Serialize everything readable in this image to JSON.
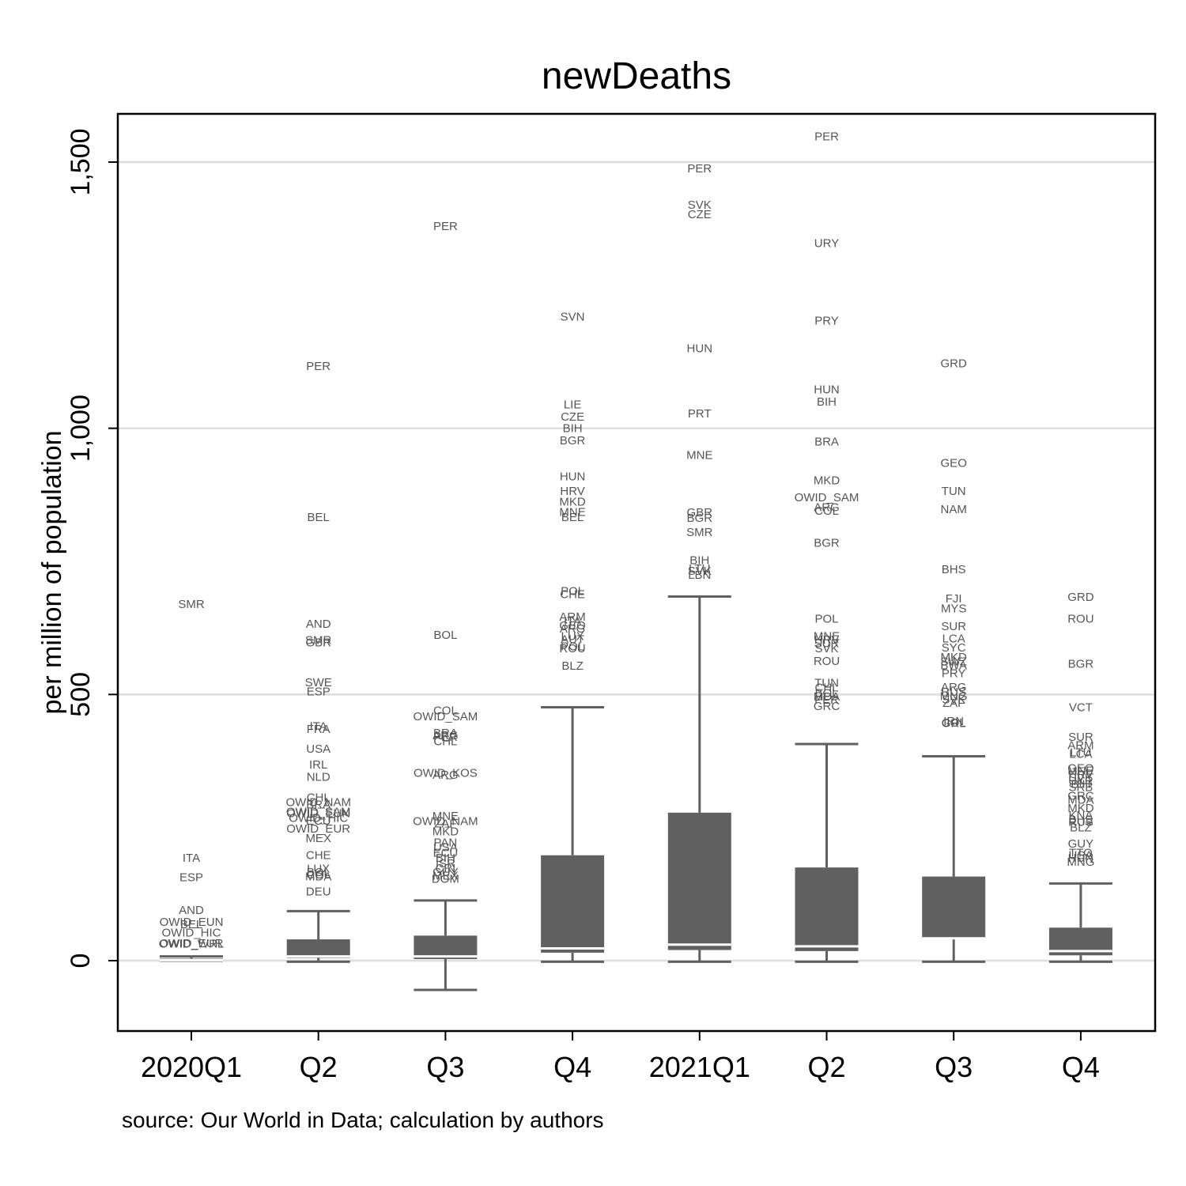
{
  "chart_data": {
    "type": "box",
    "title": "newDeaths",
    "ylabel": "per million of population",
    "source": "source: Our World in Data; calculation by authors",
    "ylim": [
      -135,
      1600
    ],
    "yticks": [
      {
        "value": 0,
        "label": "0"
      },
      {
        "value": 500,
        "label": "500"
      },
      {
        "value": 1000,
        "label": "1,000"
      },
      {
        "value": 1500,
        "label": "1,500"
      }
    ],
    "grid": true,
    "colors": {
      "box": "#606060",
      "median": "#ffffff",
      "grid": "#dddddd",
      "outlier_text": "#555555"
    },
    "categories": [
      "2020Q1",
      "Q2",
      "Q3",
      "Q4",
      "2021Q1",
      "Q2",
      "Q3",
      "Q4"
    ],
    "boxes": [
      {
        "category": "2020Q1",
        "whisker_low": 0,
        "q1": 0,
        "median": 1,
        "q3": 4,
        "whisker_high": 8
      },
      {
        "category": "Q2",
        "whisker_low": -2,
        "q1": 5,
        "median": 8,
        "q3": 40,
        "whisker_high": 93
      },
      {
        "category": "Q3",
        "whisker_low": -55,
        "q1": 3,
        "median": 8,
        "q3": 47,
        "whisker_high": 113
      },
      {
        "category": "Q4",
        "whisker_low": -2,
        "q1": 15,
        "median": 23,
        "q3": 198,
        "whisker_high": 476
      },
      {
        "category": "2021Q1",
        "whisker_low": -2,
        "q1": 20,
        "median": 30,
        "q3": 278,
        "whisker_high": 684
      },
      {
        "category": "Q2",
        "whisker_low": -2,
        "q1": 18,
        "median": 27,
        "q3": 175,
        "whisker_high": 407
      },
      {
        "category": "Q3",
        "whisker_low": -2,
        "q1": 40,
        "median": 42,
        "q3": 158,
        "whisker_high": 384
      },
      {
        "category": "Q4",
        "whisker_low": -2,
        "q1": 10,
        "median": 18,
        "q3": 62,
        "whisker_high": 145
      }
    ],
    "outliers": [
      [
        {
          "label": "SMR",
          "value": 670
        },
        {
          "label": "ITA",
          "value": 193
        },
        {
          "label": "ESP",
          "value": 157
        },
        {
          "label": "AND",
          "value": 95
        },
        {
          "label": "OWID_EUN",
          "value": 73
        },
        {
          "label": "BEL",
          "value": 68
        },
        {
          "label": "OWID_HIC",
          "value": 53
        },
        {
          "label": "OWID_EUR",
          "value": 33
        },
        {
          "label": "OWID_WRL",
          "value": 32
        }
      ],
      [
        {
          "label": "PER",
          "value": 1117
        },
        {
          "label": "BEL",
          "value": 833
        },
        {
          "label": "AND",
          "value": 633
        },
        {
          "label": "SMR",
          "value": 602
        },
        {
          "label": "GBR",
          "value": 598
        },
        {
          "label": "SWE",
          "value": 523
        },
        {
          "label": "ESP",
          "value": 506
        },
        {
          "label": "ITA",
          "value": 440
        },
        {
          "label": "FRA",
          "value": 435
        },
        {
          "label": "USA",
          "value": 398
        },
        {
          "label": "IRL",
          "value": 368
        },
        {
          "label": "NLD",
          "value": 345
        },
        {
          "label": "CHL",
          "value": 307
        },
        {
          "label": "OWID_NAM",
          "value": 298
        },
        {
          "label": "BRA",
          "value": 293
        },
        {
          "label": "OWID_SAM",
          "value": 280
        },
        {
          "label": "OWID_EUN",
          "value": 277
        },
        {
          "label": "OWID_HIC",
          "value": 268
        },
        {
          "label": "ECU",
          "value": 263
        },
        {
          "label": "OWID_EUR",
          "value": 248
        },
        {
          "label": "MEX",
          "value": 230
        },
        {
          "label": "CHE",
          "value": 198
        },
        {
          "label": "LUX",
          "value": 173
        },
        {
          "label": "BOL",
          "value": 166
        },
        {
          "label": "COL",
          "value": 162
        },
        {
          "label": "MDA",
          "value": 158
        },
        {
          "label": "DEU",
          "value": 130
        }
      ],
      [
        {
          "label": "PER",
          "value": 1380
        },
        {
          "label": "BOL",
          "value": 612
        },
        {
          "label": "COL",
          "value": 470
        },
        {
          "label": "OWID_SAM",
          "value": 459
        },
        {
          "label": "BRA",
          "value": 428
        },
        {
          "label": "ARG",
          "value": 423
        },
        {
          "label": "PER",
          "value": 420
        },
        {
          "label": "CHL",
          "value": 412
        },
        {
          "label": "OWID_KOS",
          "value": 353
        },
        {
          "label": "ARG",
          "value": 349
        },
        {
          "label": "MNE",
          "value": 272
        },
        {
          "label": "OWID_NAM",
          "value": 262
        },
        {
          "label": "ZAF",
          "value": 258
        },
        {
          "label": "MKD",
          "value": 243
        },
        {
          "label": "PAN",
          "value": 222
        },
        {
          "label": "USA",
          "value": 213
        },
        {
          "label": "ECU",
          "value": 203
        },
        {
          "label": "BIH",
          "value": 193
        },
        {
          "label": "ISR",
          "value": 183
        },
        {
          "label": "CRI",
          "value": 174
        },
        {
          "label": "GUY",
          "value": 166
        },
        {
          "label": "MEX",
          "value": 160
        },
        {
          "label": "DOM",
          "value": 154
        }
      ],
      [
        {
          "label": "SVN",
          "value": 1210
        },
        {
          "label": "LIE",
          "value": 1045
        },
        {
          "label": "CZE",
          "value": 1022
        },
        {
          "label": "BIH",
          "value": 1000
        },
        {
          "label": "BGR",
          "value": 977
        },
        {
          "label": "HUN",
          "value": 910
        },
        {
          "label": "HRV",
          "value": 882
        },
        {
          "label": "MKD",
          "value": 862
        },
        {
          "label": "MNE",
          "value": 843
        },
        {
          "label": "BEL",
          "value": 833
        },
        {
          "label": "POL",
          "value": 694
        },
        {
          "label": "CHE",
          "value": 688
        },
        {
          "label": "ARM",
          "value": 646
        },
        {
          "label": "ITA",
          "value": 638
        },
        {
          "label": "GEO",
          "value": 630
        },
        {
          "label": "ARG",
          "value": 624
        },
        {
          "label": "LUX",
          "value": 610
        },
        {
          "label": "AUT",
          "value": 604
        },
        {
          "label": "ROU",
          "value": 587
        },
        {
          "label": "POL",
          "value": 590
        },
        {
          "label": "BLZ",
          "value": 554
        }
      ],
      [
        {
          "label": "PER",
          "value": 1488
        },
        {
          "label": "SVK",
          "value": 1420
        },
        {
          "label": "CZE",
          "value": 1402
        },
        {
          "label": "HUN",
          "value": 1150
        },
        {
          "label": "PRT",
          "value": 1028
        },
        {
          "label": "MNE",
          "value": 950
        },
        {
          "label": "GBR",
          "value": 842
        },
        {
          "label": "BGR",
          "value": 832
        },
        {
          "label": "SMR",
          "value": 805
        },
        {
          "label": "BIH",
          "value": 752
        },
        {
          "label": "LTU",
          "value": 737
        },
        {
          "label": "SVK",
          "value": 732
        },
        {
          "label": "LBN",
          "value": 725
        }
      ],
      [
        {
          "label": "PER",
          "value": 1548
        },
        {
          "label": "URY",
          "value": 1348
        },
        {
          "label": "PRY",
          "value": 1202
        },
        {
          "label": "HUN",
          "value": 1073
        },
        {
          "label": "BIH",
          "value": 1050
        },
        {
          "label": "BRA",
          "value": 975
        },
        {
          "label": "MKD",
          "value": 902
        },
        {
          "label": "OWID_SAM",
          "value": 870
        },
        {
          "label": "ARG",
          "value": 852
        },
        {
          "label": "COL",
          "value": 845
        },
        {
          "label": "BGR",
          "value": 785
        },
        {
          "label": "POL",
          "value": 642
        },
        {
          "label": "MNE",
          "value": 610
        },
        {
          "label": "HRV",
          "value": 603
        },
        {
          "label": "SUR",
          "value": 596
        },
        {
          "label": "SVK",
          "value": 587
        },
        {
          "label": "ROU",
          "value": 563
        },
        {
          "label": "TUN",
          "value": 522
        },
        {
          "label": "CHL",
          "value": 513
        },
        {
          "label": "BOL",
          "value": 503
        },
        {
          "label": "MDA",
          "value": 496
        },
        {
          "label": "PER",
          "value": 490
        },
        {
          "label": "GRC",
          "value": 478
        }
      ],
      [
        {
          "label": "GRD",
          "value": 1122
        },
        {
          "label": "GEO",
          "value": 935
        },
        {
          "label": "TUN",
          "value": 882
        },
        {
          "label": "NAM",
          "value": 848
        },
        {
          "label": "BHS",
          "value": 735
        },
        {
          "label": "FJI",
          "value": 680
        },
        {
          "label": "MYS",
          "value": 662
        },
        {
          "label": "SUR",
          "value": 628
        },
        {
          "label": "LCA",
          "value": 605
        },
        {
          "label": "SYC",
          "value": 588
        },
        {
          "label": "MKD",
          "value": 570
        },
        {
          "label": "SWZ",
          "value": 562
        },
        {
          "label": "BWA",
          "value": 555
        },
        {
          "label": "PRY",
          "value": 540
        },
        {
          "label": "ARG",
          "value": 514
        },
        {
          "label": "RUS",
          "value": 505
        },
        {
          "label": "MNG",
          "value": 497
        },
        {
          "label": "SVK",
          "value": 491
        },
        {
          "label": "ZAF",
          "value": 484
        },
        {
          "label": "IRN",
          "value": 450
        },
        {
          "label": "COL",
          "value": 447
        },
        {
          "label": "GRL",
          "value": 446
        }
      ],
      [
        {
          "label": "GRD",
          "value": 683
        },
        {
          "label": "ROU",
          "value": 642
        },
        {
          "label": "BGR",
          "value": 558
        },
        {
          "label": "VCT",
          "value": 476
        },
        {
          "label": "SUR",
          "value": 420
        },
        {
          "label": "ARM",
          "value": 405
        },
        {
          "label": "LTU",
          "value": 391
        },
        {
          "label": "LCA",
          "value": 388
        },
        {
          "label": "GEO",
          "value": 362
        },
        {
          "label": "MNE",
          "value": 357
        },
        {
          "label": "HRV",
          "value": 350
        },
        {
          "label": "SVK",
          "value": 344
        },
        {
          "label": "UKR",
          "value": 338
        },
        {
          "label": "BIH",
          "value": 332
        },
        {
          "label": "SRB",
          "value": 326
        },
        {
          "label": "GRC",
          "value": 310
        },
        {
          "label": "MDA",
          "value": 302
        },
        {
          "label": "MKD",
          "value": 287
        },
        {
          "label": "KNA",
          "value": 273
        },
        {
          "label": "BHS",
          "value": 265
        },
        {
          "label": "RUS",
          "value": 261
        },
        {
          "label": "BLZ",
          "value": 250
        },
        {
          "label": "GUY",
          "value": 220
        },
        {
          "label": "TTO",
          "value": 203
        },
        {
          "label": "USA",
          "value": 198
        },
        {
          "label": "HUN",
          "value": 193
        },
        {
          "label": "MNG",
          "value": 186
        }
      ]
    ]
  }
}
